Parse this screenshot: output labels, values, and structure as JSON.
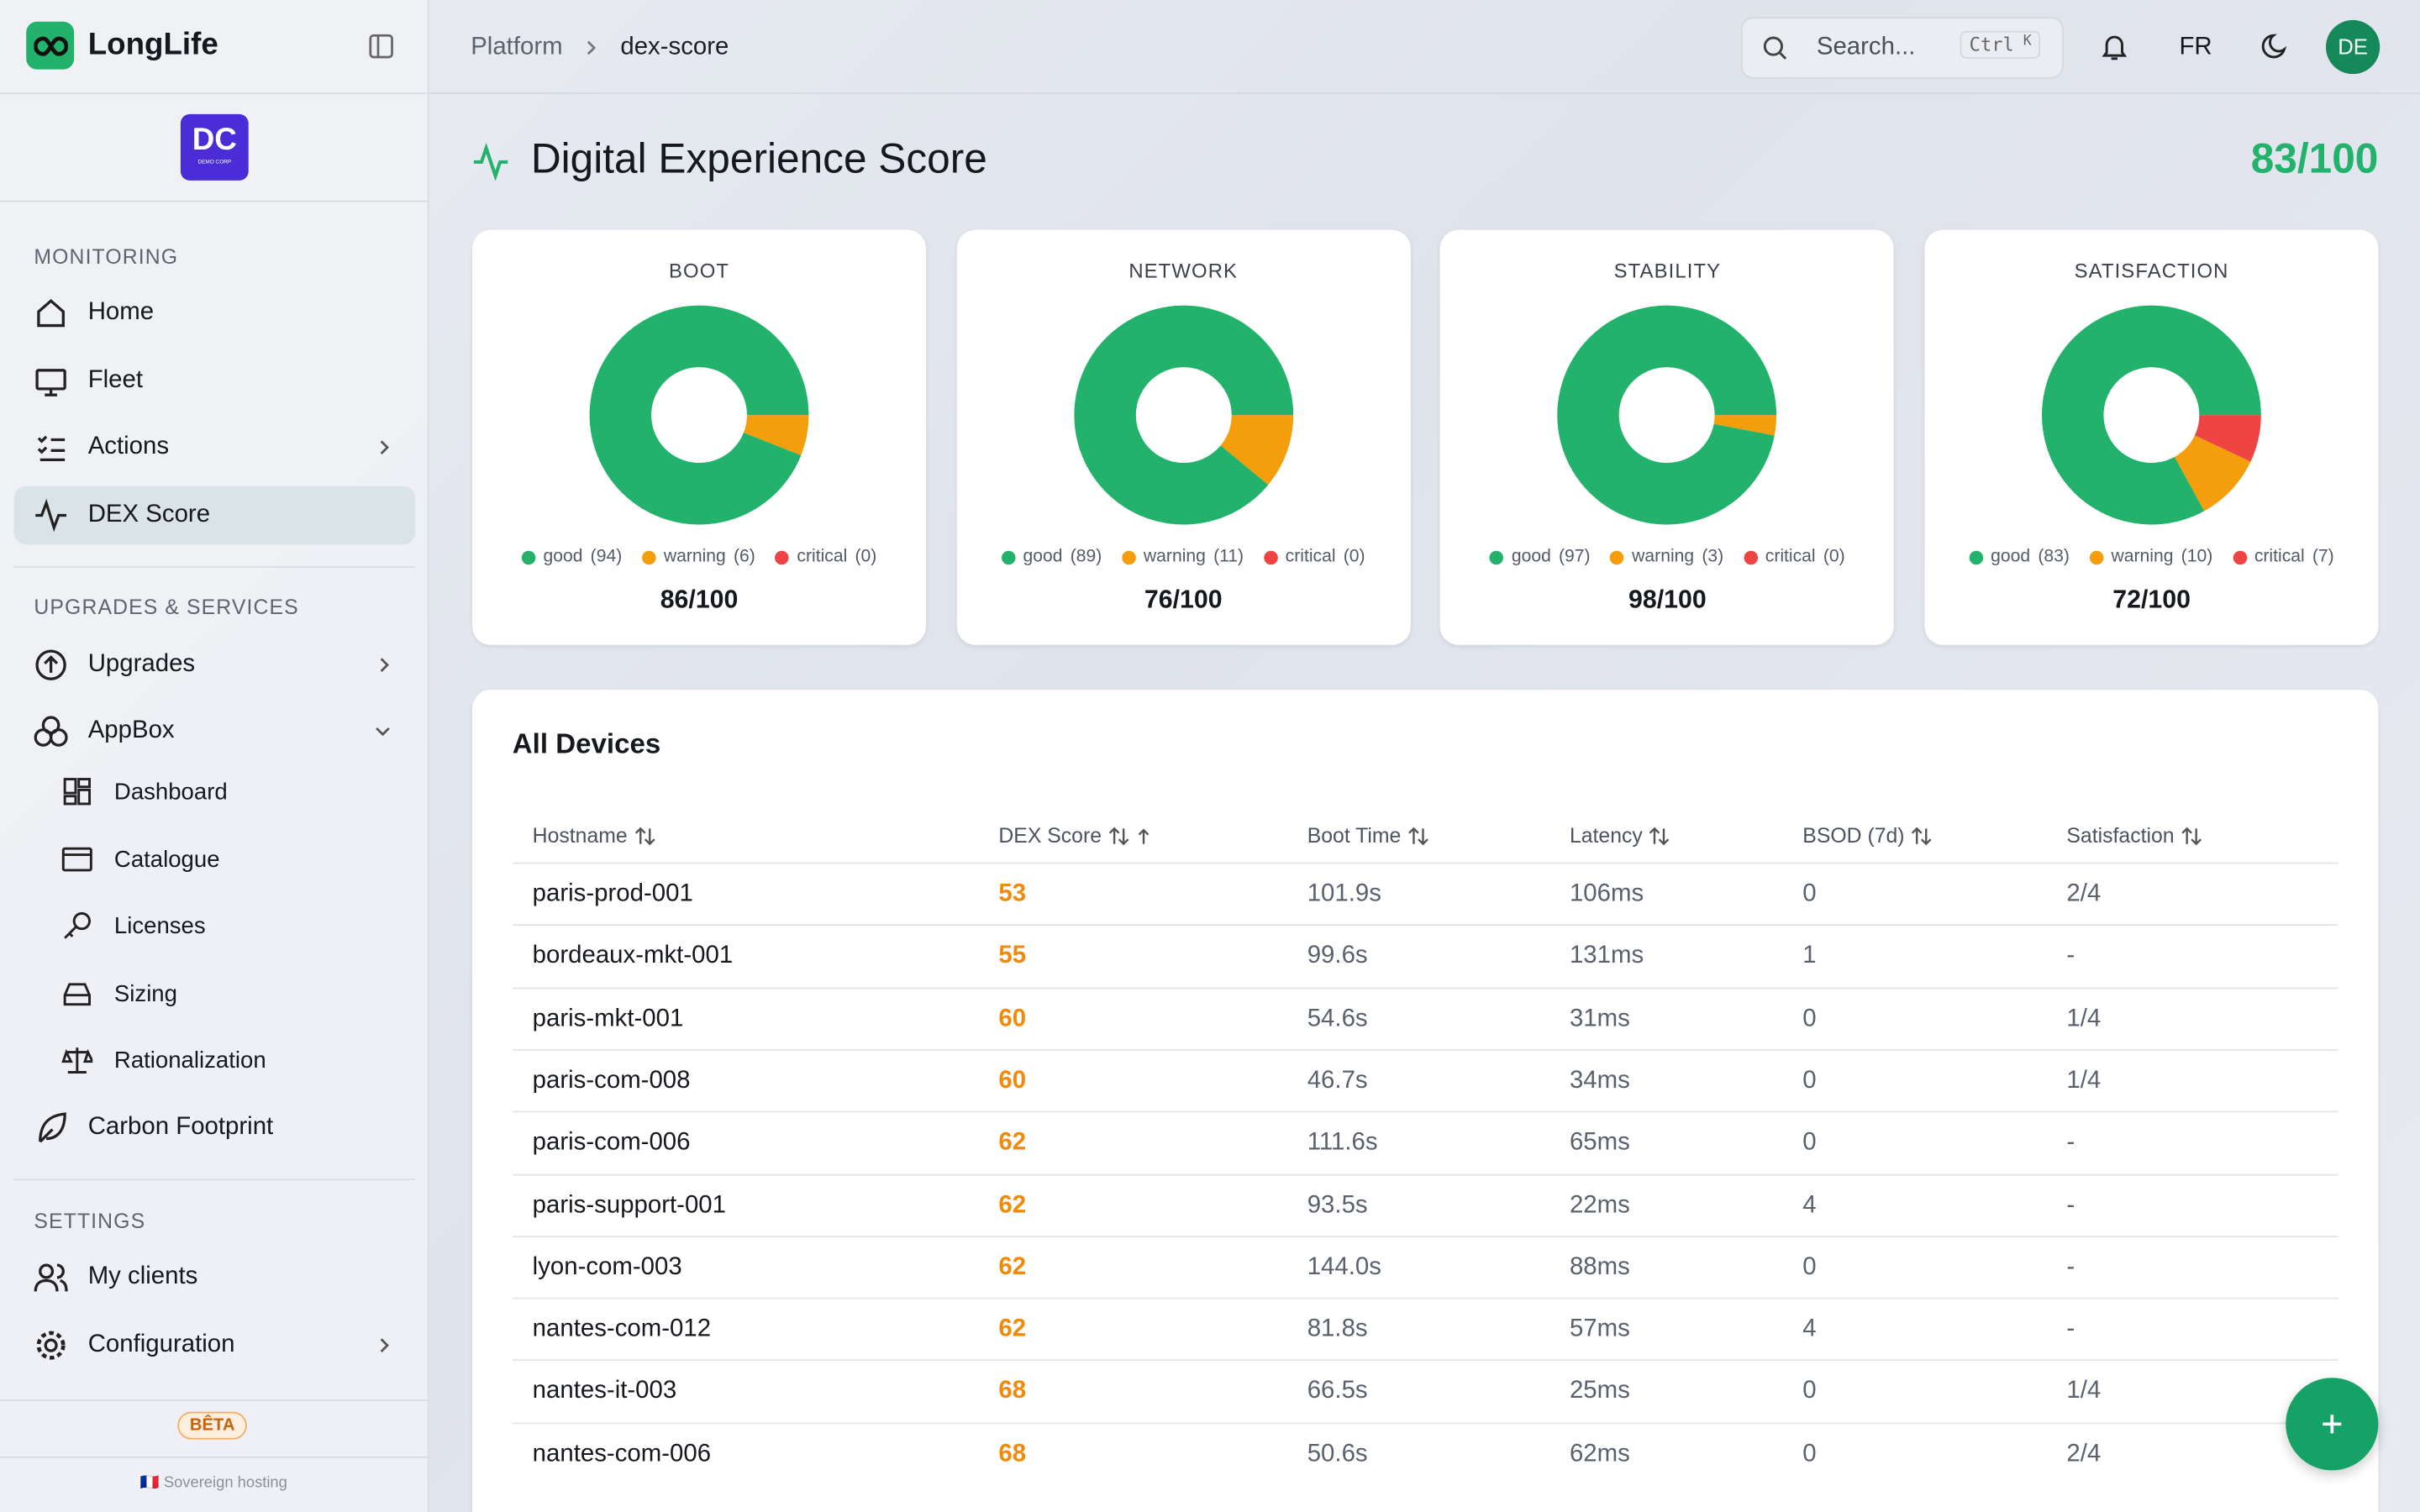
{
  "sidebar": {
    "brand": "LongLife",
    "org_badge": "DC",
    "org_sub": "DEMO CORP",
    "sections": [
      {
        "title": "MONITORING",
        "items": [
          "Home",
          "Fleet",
          "Actions",
          "DEX Score"
        ]
      },
      {
        "title": "UPGRADES & SERVICES",
        "items": [
          "Upgrades",
          "AppBox",
          "Dashboard",
          "Catalogue",
          "Licenses",
          "Sizing",
          "Rationalization",
          "Carbon Footprint"
        ]
      },
      {
        "title": "SETTINGS",
        "items": [
          "My clients",
          "Configuration"
        ]
      }
    ],
    "beta": "BÊTA",
    "footer": "🇫🇷 Sovereign hosting"
  },
  "header": {
    "breadcrumb": [
      "Platform",
      "dex-score"
    ],
    "search": "Search...",
    "shortcut": [
      "Ctrl",
      "K"
    ],
    "lang": "FR",
    "avatar": "DE"
  },
  "page": {
    "title": "Digital Experience Score",
    "overall": "83/100"
  },
  "chart_data": [
    {
      "type": "pie",
      "title": "BOOT",
      "score": "86/100",
      "categories": [
        "good",
        "warning",
        "critical"
      ],
      "values": [
        94,
        6,
        0
      ],
      "value_labels": [
        "(94)",
        "(6)",
        "(0)"
      ],
      "colors": [
        "#22b26b",
        "#f59e0b",
        "#ef4444"
      ]
    },
    {
      "type": "pie",
      "title": "NETWORK",
      "score": "76/100",
      "categories": [
        "good",
        "warning",
        "critical"
      ],
      "values": [
        89,
        11,
        0
      ],
      "value_labels": [
        "(89)",
        "(11)",
        "(0)"
      ],
      "colors": [
        "#22b26b",
        "#f59e0b",
        "#ef4444"
      ]
    },
    {
      "type": "pie",
      "title": "STABILITY",
      "score": "98/100",
      "categories": [
        "good",
        "warning",
        "critical"
      ],
      "values": [
        97,
        3,
        0
      ],
      "value_labels": [
        "(97)",
        "(3)",
        "(0)"
      ],
      "colors": [
        "#22b26b",
        "#f59e0b",
        "#ef4444"
      ]
    },
    {
      "type": "pie",
      "title": "SATISFACTION",
      "score": "72/100",
      "categories": [
        "good",
        "warning",
        "critical"
      ],
      "values": [
        83,
        10,
        7
      ],
      "value_labels": [
        "(83)",
        "(10)",
        "(7)"
      ],
      "colors": [
        "#22b26b",
        "#f59e0b",
        "#ef4444"
      ]
    }
  ],
  "table": {
    "title": "All Devices",
    "columns": [
      "Hostname",
      "DEX Score",
      "Boot Time",
      "Latency",
      "BSOD (7d)",
      "Satisfaction"
    ],
    "rows": [
      [
        "paris-prod-001",
        "53",
        "101.9s",
        "106ms",
        "0",
        "2/4"
      ],
      [
        "bordeaux-mkt-001",
        "55",
        "99.6s",
        "131ms",
        "1",
        "-"
      ],
      [
        "paris-mkt-001",
        "60",
        "54.6s",
        "31ms",
        "0",
        "1/4"
      ],
      [
        "paris-com-008",
        "60",
        "46.7s",
        "34ms",
        "0",
        "1/4"
      ],
      [
        "paris-com-006",
        "62",
        "111.6s",
        "65ms",
        "0",
        "-"
      ],
      [
        "paris-support-001",
        "62",
        "93.5s",
        "22ms",
        "4",
        "-"
      ],
      [
        "lyon-com-003",
        "62",
        "144.0s",
        "88ms",
        "0",
        "-"
      ],
      [
        "nantes-com-012",
        "62",
        "81.8s",
        "57ms",
        "4",
        "-"
      ],
      [
        "nantes-it-003",
        "68",
        "66.5s",
        "25ms",
        "0",
        "1/4"
      ],
      [
        "nantes-com-006",
        "68",
        "50.6s",
        "62ms",
        "0",
        "2/4"
      ]
    ]
  }
}
